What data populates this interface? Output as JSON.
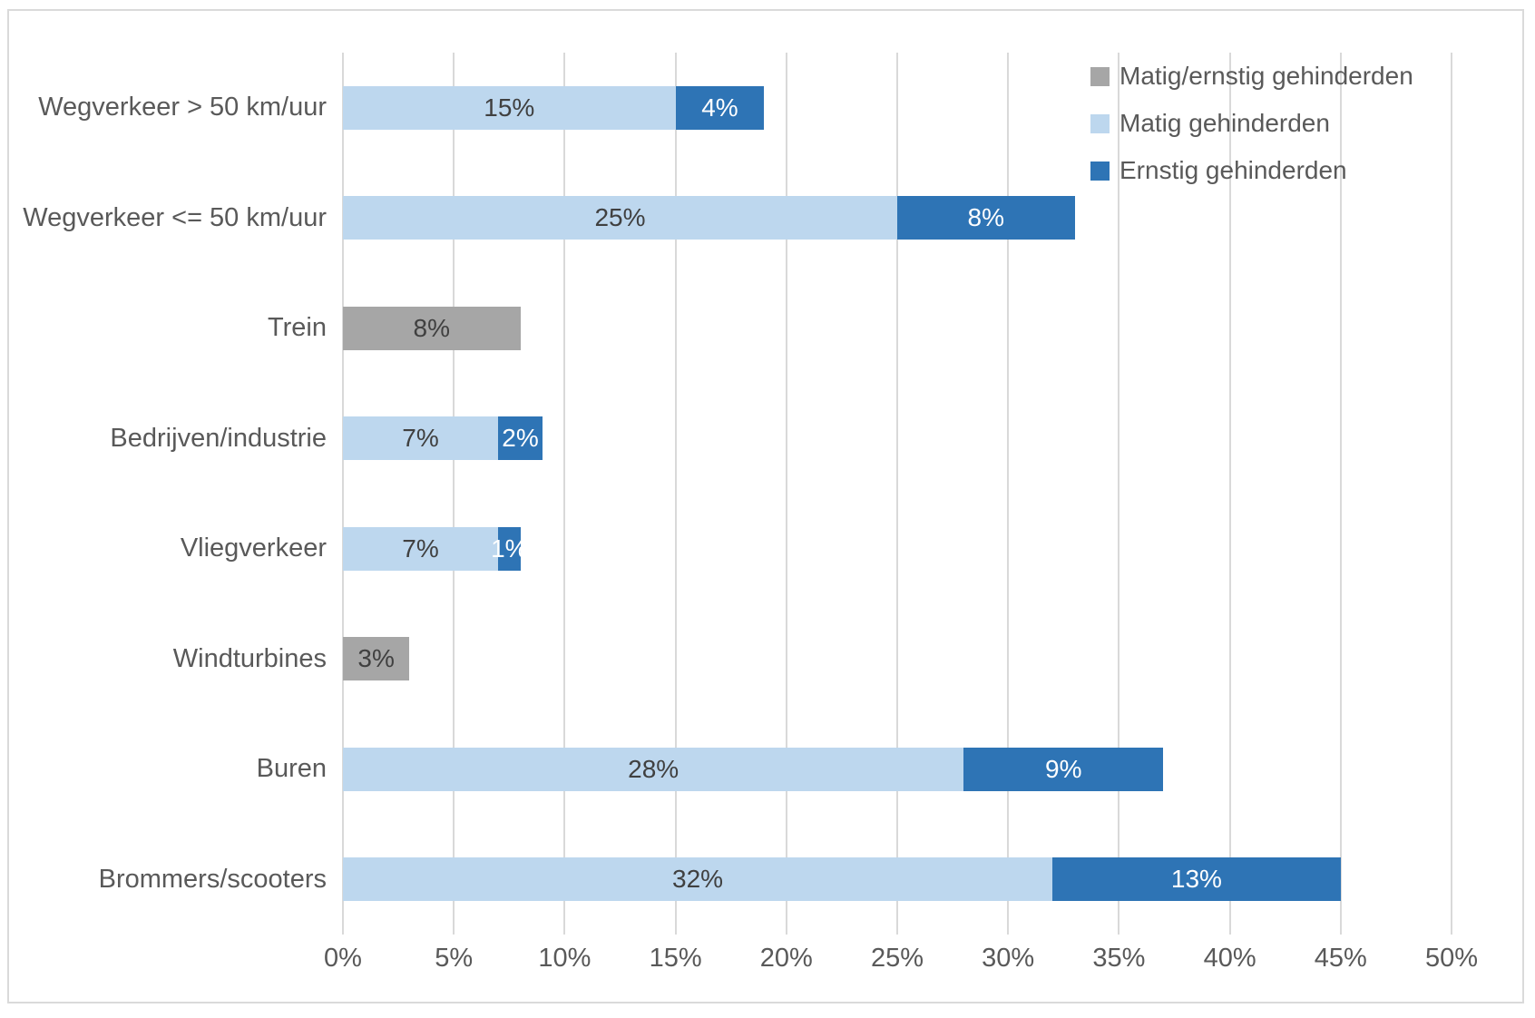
{
  "chart_data": {
    "type": "bar",
    "orientation": "horizontal",
    "stacked": true,
    "categories": [
      "Wegverkeer > 50 km/uur",
      "Wegverkeer <= 50 km/uur",
      "Trein",
      "Bedrijven/industrie",
      "Vliegverkeer",
      "Windturbines",
      "Buren",
      "Brommers/scooters"
    ],
    "series": [
      {
        "name": "Matig/ernstig gehinderden",
        "color": "#A6A6A6",
        "label_color": "#404040",
        "values": [
          0,
          0,
          8,
          0,
          0,
          3,
          0,
          0
        ],
        "labels": [
          "",
          "",
          "8%",
          "",
          "",
          "3%",
          "",
          ""
        ]
      },
      {
        "name": "Matig gehinderden",
        "color": "#BDD7EE",
        "label_color": "#404040",
        "values": [
          15,
          25,
          0,
          7,
          7,
          0,
          28,
          32
        ],
        "labels": [
          "15%",
          "25%",
          "",
          "7%",
          "7%",
          "",
          "28%",
          "32%"
        ]
      },
      {
        "name": "Ernstig gehinderden",
        "color": "#2E74B5",
        "label_color": "#FFFFFF",
        "values": [
          4,
          8,
          0,
          2,
          1,
          0,
          9,
          13
        ],
        "labels": [
          "4%",
          "8%",
          "",
          "2%",
          "1%",
          "",
          "9%",
          "13%"
        ]
      }
    ],
    "xlim": [
      0,
      50
    ],
    "x_tick_step": 5,
    "x_ticks": [
      "0%",
      "5%",
      "10%",
      "15%",
      "20%",
      "25%",
      "30%",
      "35%",
      "40%",
      "45%",
      "50%"
    ],
    "grid": "vertical",
    "legend_position": "top-right-overlay",
    "colors": {
      "background": "#FFFFFF",
      "frame_border": "#DADADA",
      "gridline": "#D9D9D9",
      "axis_text": "#595959",
      "category_text": "#595959",
      "legend_text": "#595959"
    }
  }
}
